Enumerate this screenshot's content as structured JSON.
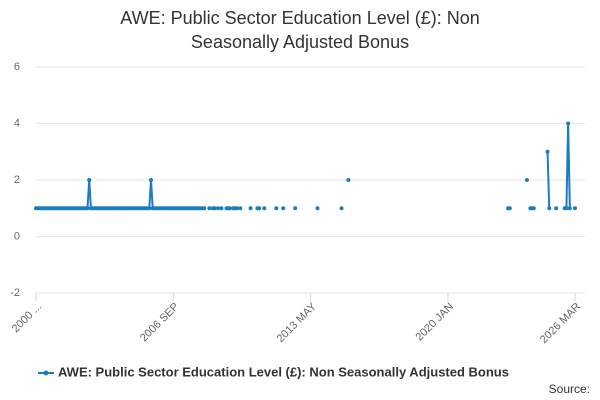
{
  "chart_data": {
    "type": "line",
    "title": "AWE: Public Sector Education Level (£): Non Seasonally Adjusted Bonus",
    "source_label": "Source:",
    "categories": [
      "2000 ...",
      null,
      null,
      null,
      null,
      null,
      null,
      null,
      null,
      null,
      null,
      null,
      null,
      null,
      null,
      null,
      null,
      null,
      null,
      null,
      null,
      null,
      null,
      null,
      null,
      null,
      null,
      null,
      null,
      null,
      null,
      null,
      null,
      null,
      null,
      null,
      null,
      null,
      null,
      null,
      null,
      null,
      null,
      null,
      null,
      null,
      null,
      null,
      null,
      null,
      null,
      null,
      null,
      null,
      null,
      null,
      null,
      null,
      null,
      null,
      null,
      null,
      null,
      null,
      null,
      null,
      null,
      null,
      null,
      null,
      null,
      null,
      null,
      null,
      null,
      null,
      null,
      null,
      null,
      null,
      "2006 SEP",
      null,
      null,
      null,
      null,
      null,
      null,
      null,
      null,
      null,
      null,
      null,
      null,
      null,
      null,
      null,
      null,
      null,
      null,
      null,
      null,
      null,
      null,
      null,
      null,
      null,
      null,
      null,
      null,
      null,
      null,
      null,
      null,
      null,
      null,
      null,
      null,
      null,
      null,
      null,
      null,
      null,
      null,
      null,
      null,
      null,
      null,
      null,
      null,
      null,
      null,
      null,
      null,
      null,
      null,
      null,
      null,
      null,
      null,
      null,
      null,
      null,
      null,
      null,
      null,
      null,
      null,
      null,
      null,
      null,
      null,
      null,
      null,
      null,
      null,
      null,
      null,
      null,
      null,
      null,
      "2013 MAY",
      null,
      null,
      null,
      null,
      null,
      null,
      null,
      null,
      null,
      null,
      null,
      null,
      null,
      null,
      null,
      null,
      null,
      null,
      null,
      null,
      null,
      null,
      null,
      null,
      null,
      null,
      null,
      null,
      null,
      null,
      null,
      null,
      null,
      null,
      null,
      null,
      null,
      null,
      null,
      null,
      null,
      null,
      null,
      null,
      null,
      null,
      null,
      null,
      null,
      null,
      null,
      null,
      null,
      null,
      null,
      null,
      null,
      null,
      null,
      null,
      null,
      null,
      null,
      null,
      null,
      null,
      null,
      null,
      null,
      null,
      null,
      null,
      null,
      null,
      null,
      null,
      null,
      null,
      null,
      "2020 JAN",
      null,
      null,
      null,
      null,
      null,
      null,
      null,
      null,
      null,
      null,
      null,
      null,
      null,
      null,
      null,
      null,
      null,
      null,
      null,
      null,
      null,
      null,
      null,
      null,
      null,
      null,
      null,
      null,
      null,
      null,
      null,
      null,
      null,
      null,
      null,
      null,
      null,
      null,
      null,
      null,
      null,
      null,
      null,
      null,
      null,
      null,
      null,
      null,
      null,
      null,
      null,
      null,
      null,
      null,
      null,
      null,
      null,
      null,
      null,
      null,
      null,
      null,
      null,
      null,
      null,
      null,
      null,
      null,
      null,
      null,
      null,
      null,
      null,
      "2026 MAR"
    ],
    "series": [
      {
        "name": "AWE: Public Sector Education Level (£): Non Seasonally Adjusted Bonus",
        "color": "#1a7dbf",
        "values": [
          1,
          1,
          1,
          1,
          1,
          1,
          1,
          1,
          1,
          1,
          1,
          1,
          1,
          1,
          1,
          1,
          1,
          1,
          1,
          1,
          1,
          1,
          1,
          1,
          1,
          1,
          1,
          1,
          1,
          1,
          1,
          2,
          1,
          1,
          1,
          1,
          1,
          1,
          1,
          1,
          1,
          1,
          1,
          1,
          1,
          1,
          1,
          1,
          1,
          1,
          1,
          1,
          1,
          1,
          1,
          1,
          1,
          1,
          1,
          1,
          1,
          1,
          1,
          1,
          1,
          1,
          1,
          2,
          1,
          1,
          1,
          1,
          1,
          1,
          1,
          1,
          1,
          1,
          1,
          1,
          1,
          1,
          1,
          1,
          1,
          1,
          1,
          1,
          1,
          1,
          1,
          1,
          1,
          1,
          1,
          1,
          1,
          1,
          1,
          null,
          null,
          1,
          null,
          1,
          1,
          null,
          1,
          null,
          1,
          null,
          null,
          1,
          1,
          1,
          null,
          1,
          1,
          1,
          null,
          1,
          null,
          null,
          null,
          null,
          null,
          1,
          null,
          null,
          null,
          1,
          1,
          null,
          null,
          1,
          null,
          null,
          null,
          null,
          null,
          null,
          1,
          null,
          null,
          null,
          1,
          null,
          null,
          null,
          null,
          null,
          null,
          1,
          null,
          null,
          null,
          null,
          null,
          null,
          null,
          null,
          null,
          null,
          null,
          null,
          1,
          null,
          null,
          null,
          null,
          null,
          null,
          null,
          null,
          null,
          null,
          null,
          null,
          null,
          1,
          null,
          null,
          null,
          2,
          null,
          null,
          null,
          null,
          null,
          null,
          null,
          null,
          null,
          null,
          null,
          null,
          null,
          null,
          null,
          null,
          null,
          null,
          null,
          null,
          null,
          null,
          null,
          null,
          null,
          null,
          null,
          null,
          null,
          null,
          null,
          null,
          null,
          null,
          null,
          null,
          null,
          null,
          null,
          null,
          null,
          null,
          null,
          null,
          null,
          null,
          null,
          null,
          null,
          null,
          null,
          null,
          null,
          null,
          null,
          null,
          null,
          null,
          null,
          null,
          null,
          null,
          null,
          null,
          null,
          null,
          null,
          null,
          null,
          null,
          null,
          null,
          null,
          null,
          null,
          null,
          null,
          null,
          null,
          null,
          null,
          null,
          null,
          null,
          null,
          null,
          null,
          null,
          null,
          null,
          null,
          null,
          1,
          1,
          null,
          null,
          null,
          null,
          null,
          null,
          null,
          null,
          null,
          2,
          null,
          1,
          1,
          1,
          null,
          null,
          null,
          null,
          null,
          null,
          null,
          3,
          1,
          null,
          null,
          null,
          1,
          null,
          null,
          null,
          null,
          1,
          1,
          4,
          1,
          null,
          null,
          1
        ]
      }
    ],
    "ylim": [
      -2,
      6
    ],
    "yticks": [
      -2,
      0,
      2,
      4,
      6
    ],
    "grid": true
  }
}
